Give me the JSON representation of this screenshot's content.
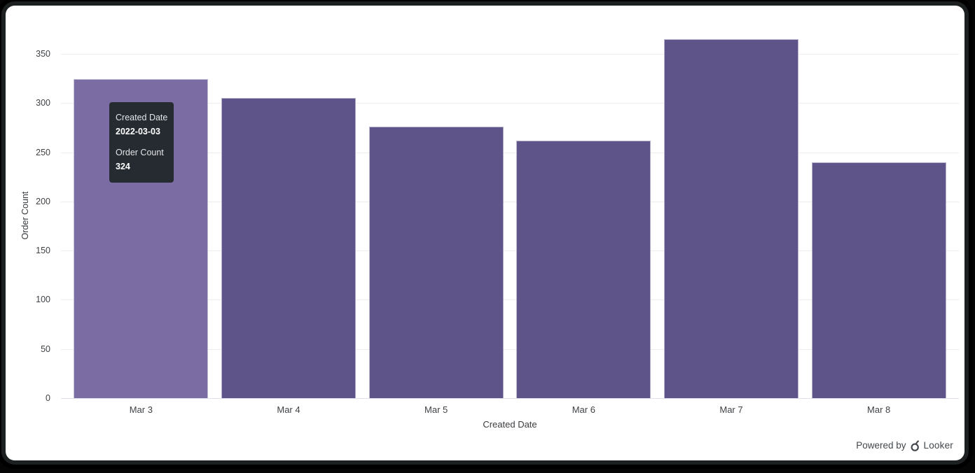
{
  "chart_data": {
    "type": "bar",
    "categories": [
      "Mar 3",
      "Mar 4",
      "Mar 5",
      "Mar 6",
      "Mar 7",
      "Mar 8"
    ],
    "values": [
      324,
      305,
      276,
      262,
      365,
      240
    ],
    "hovered_index": 0,
    "title": "",
    "xlabel": "Created Date",
    "ylabel": "Order Count",
    "y_ticks": [
      0,
      50,
      100,
      150,
      200,
      250,
      300,
      350
    ],
    "ylim": [
      0,
      370
    ],
    "grid": true,
    "colors": {
      "bar": "#5f5489",
      "bar_hovered": "#7b6da3",
      "bar_border": "rgba(255,255,255,0.55)"
    }
  },
  "tooltip": {
    "dimension_label": "Created Date",
    "dimension_value": "2022-03-03",
    "measure_label": "Order Count",
    "measure_value": "324"
  },
  "footer": {
    "powered_by_text": "Powered by",
    "brand_name": "Looker"
  }
}
